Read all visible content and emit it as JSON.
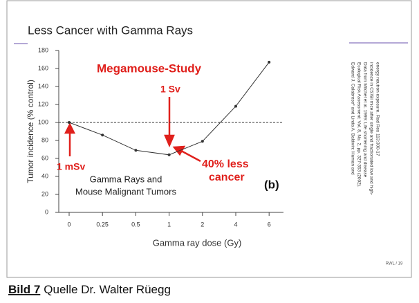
{
  "chart_data": {
    "type": "line",
    "title": "Less Cancer with Gamma Rays",
    "xlabel": "Gamma ray dose (Gy)",
    "ylabel": "Tumor incidence (% control)",
    "categories": [
      "0",
      "0.25",
      "0.5",
      "1",
      "2",
      "4",
      "6"
    ],
    "series": [
      {
        "name": "Gamma Rays and Mouse Malignant Tumors",
        "color": "#333333",
        "values": [
          100,
          86,
          69,
          64,
          79,
          118,
          167
        ]
      }
    ],
    "ylim": [
      0,
      180
    ],
    "yticks": [
      0,
      20,
      40,
      60,
      80,
      100,
      120,
      140,
      160,
      180
    ],
    "reference_line": 100,
    "annotations": [
      "Megamouse-Study",
      "1 Sv",
      "1 mSv",
      "40% less",
      "cancer",
      "Gamma Rays and",
      "Mouse Malignant Tumors",
      "(b)"
    ]
  },
  "citation": [
    "Edward J. Calabrese* and Linda A. Baldwin: Human and",
    "Ecological Risk Assessment: Vol. 8, No. 2, pp. 327-353 (2002).",
    "Data from Mitchel et al. 1999: Life shortening and disease",
    "incidence in C57Bl mice after single and fractionated low and high-",
    "energy neutron exposure. Rad Res 113:300-17"
  ],
  "slide_number": "RWL / 19",
  "footer": {
    "label": "Bild 7",
    "text": "Quelle Dr. Walter Rüegg"
  }
}
